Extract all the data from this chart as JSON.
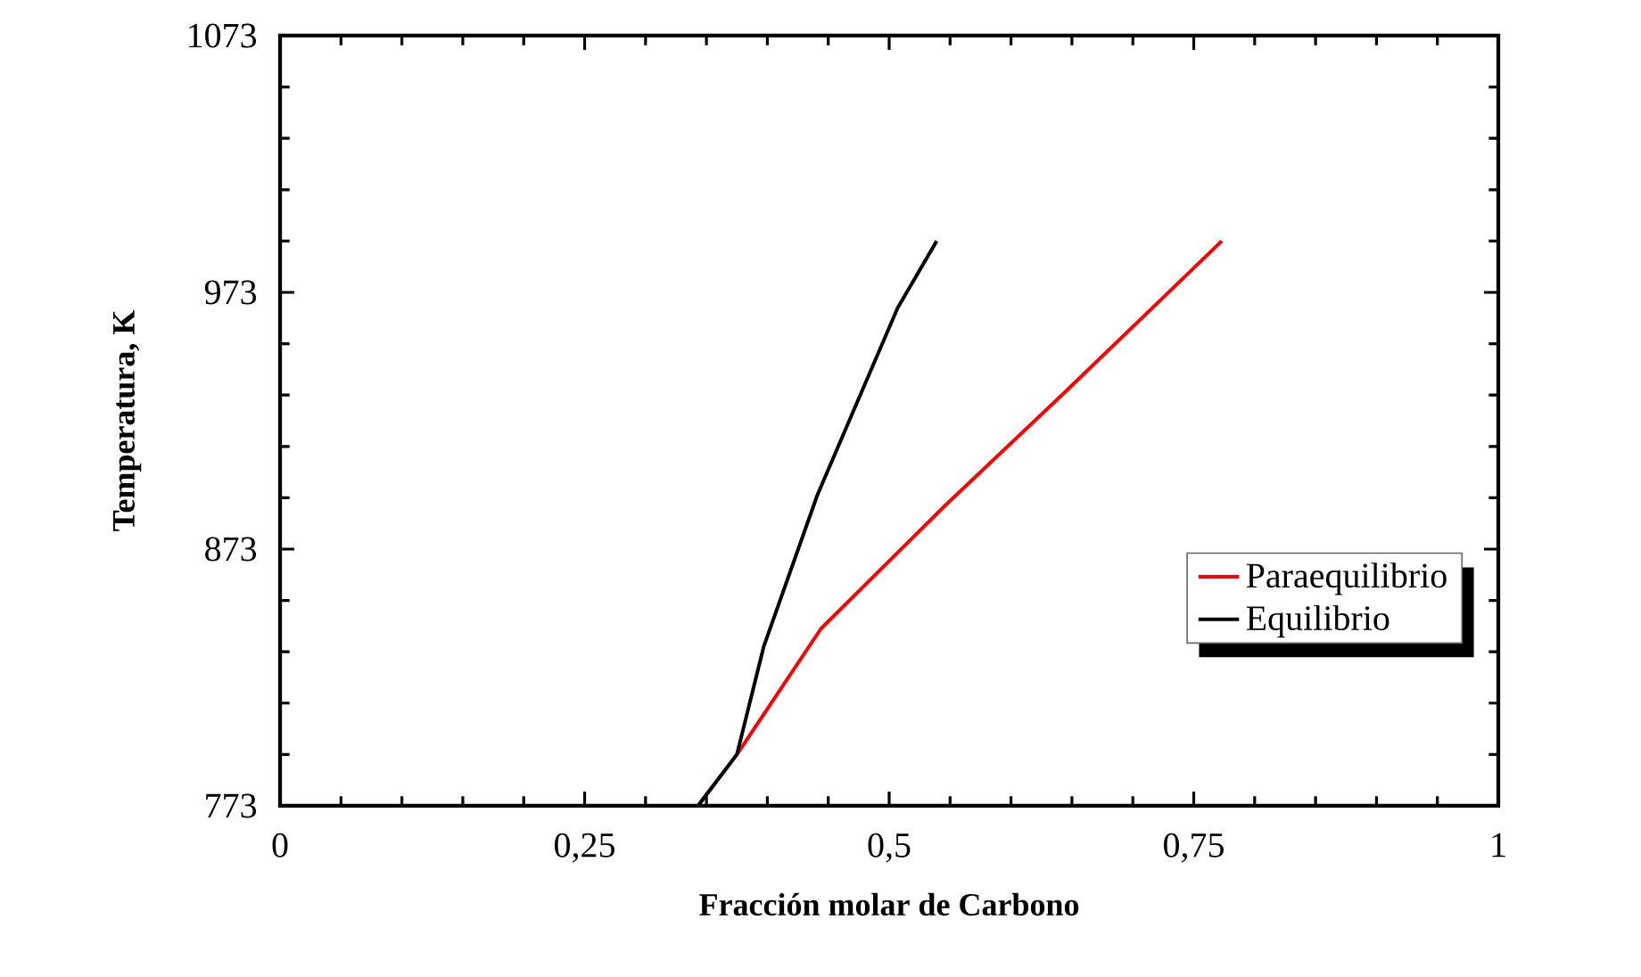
{
  "chart_data": {
    "type": "line",
    "xlabel": "Fracción molar de Carbono",
    "ylabel": "Temperatura, K",
    "xlim": [
      0,
      1
    ],
    "ylim": [
      773,
      1073
    ],
    "xticks": [
      0,
      {
        "value": 0.25,
        "label": "0,25"
      },
      {
        "value": 0.5,
        "label": "0,5"
      },
      {
        "value": 0.75,
        "label": "0,75"
      },
      1
    ],
    "yticks": [
      773,
      873,
      973,
      1073
    ],
    "grid": false,
    "legend": "right",
    "marker": "none",
    "line_style": "solid",
    "series": [
      {
        "name": "Paraequilibrio",
        "color": "#ff0000",
        "x": [
          0.343,
          0.375,
          0.444,
          0.546,
          0.644,
          0.773
        ],
        "values": [
          773,
          793,
          842,
          890,
          934,
          993
        ]
      },
      {
        "name": "Equilibrio",
        "color": "#000000",
        "x": [
          0.343,
          0.375,
          0.397,
          0.441,
          0.507,
          0.539
        ],
        "values": [
          773,
          793,
          835,
          894,
          967,
          993
        ]
      }
    ]
  }
}
